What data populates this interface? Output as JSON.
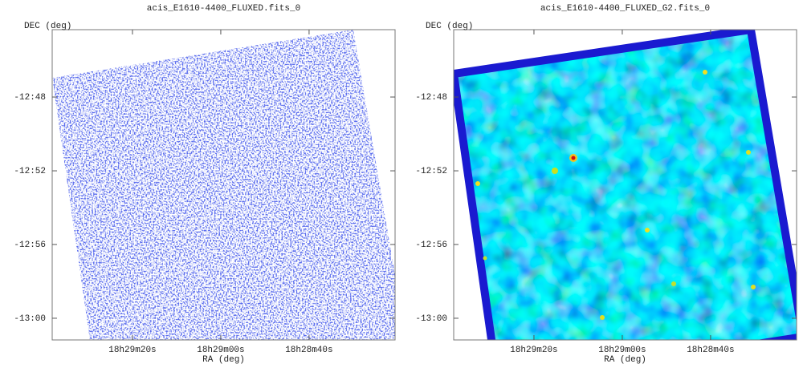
{
  "chart_data": [
    {
      "type": "image",
      "title": "acis_E1610-4400_FLUXED.fits_0",
      "xlabel": "RA (deg)",
      "ylabel": "DEC (deg)",
      "xlim": [
        277.409,
        277.0856
      ],
      "ylim": [
        -13.0196,
        -12.7391
      ],
      "xticks": [
        {
          "value": 277.3333,
          "label": "18h29m20s"
        },
        {
          "value": 277.25,
          "label": "18h29m00s"
        },
        {
          "value": 277.1667,
          "label": "18h28m40s"
        }
      ],
      "yticks": [
        {
          "value": -12.8,
          "label": "-12:48"
        },
        {
          "value": -12.8667,
          "label": "-12:52"
        },
        {
          "value": -12.9333,
          "label": "-12:56"
        },
        {
          "value": -13.0,
          "label": "-13:00"
        }
      ]
    },
    {
      "type": "image",
      "title": "acis_E1610-4400_FLUXED_G2.fits_0",
      "xlabel": "RA (deg)",
      "ylabel": "DEC (deg)",
      "xlim": [
        277.409,
        277.0856
      ],
      "ylim": [
        -13.0196,
        -12.7391
      ],
      "xticks": [
        {
          "value": 277.3333,
          "label": "18h29m20s"
        },
        {
          "value": 277.25,
          "label": "18h29m00s"
        },
        {
          "value": 277.1667,
          "label": "18h28m40s"
        }
      ],
      "yticks": [
        {
          "value": -12.8,
          "label": "-12:48"
        },
        {
          "value": -12.8667,
          "label": "-12:52"
        },
        {
          "value": -12.9333,
          "label": "-12:56"
        },
        {
          "value": -13.0,
          "label": "-13:00"
        }
      ]
    }
  ]
}
